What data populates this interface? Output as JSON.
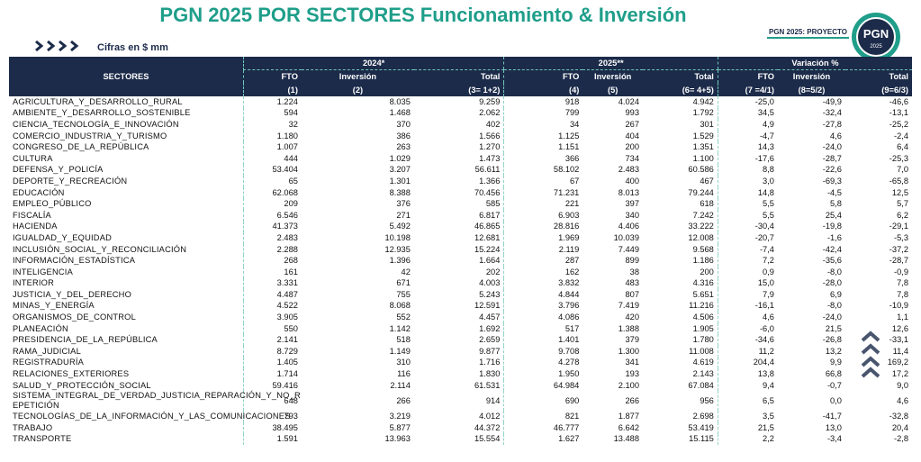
{
  "header": {
    "title": "PGN 2025 POR SECTORES Funcionamiento & Inversión",
    "subtitle": "Cifras en $ mm",
    "badge": "PGN 2025: PROYECTO",
    "logo": "PGN",
    "logo_year": "2025"
  },
  "table": {
    "sector_header": "SECTORES",
    "groups": [
      "2024*",
      "2025**",
      "Variación %"
    ],
    "columns": [
      "FTO",
      "Inversión",
      "Total",
      "FTO",
      "Inversión",
      "Total",
      "FTO",
      "Inversión",
      "Total"
    ],
    "formulas": [
      "(1)",
      "(2)",
      "(3= 1+2)",
      "(4)",
      "(5)",
      "(6= 4+5)",
      "(7 =4/1)",
      "(8=5/2)",
      "(9=6/3)"
    ],
    "rows": [
      [
        "AGRICULTURA_Y_DESARROLLO_RURAL",
        "1.224",
        "8.035",
        "9.259",
        "918",
        "4.024",
        "4.942",
        "-25,0",
        "-49,9",
        "-46,6"
      ],
      [
        "AMBIENTE_Y_DESARROLLO_SOSTENIBLE",
        "594",
        "1.468",
        "2.062",
        "799",
        "993",
        "1.792",
        "34,5",
        "-32,4",
        "-13,1"
      ],
      [
        "CIENCIA_TECNOLOGÍA_E_INNOVACIÓN",
        "32",
        "370",
        "402",
        "34",
        "267",
        "301",
        "4,9",
        "-27,8",
        "-25,2"
      ],
      [
        "COMERCIO_INDUSTRIA_Y_TURISMO",
        "1.180",
        "386",
        "1.566",
        "1.125",
        "404",
        "1.529",
        "-4,7",
        "4,6",
        "-2,4"
      ],
      [
        "CONGRESO_DE_LA_REPÚBLICA",
        "1.007",
        "263",
        "1.270",
        "1.151",
        "200",
        "1.351",
        "14,3",
        "-24,0",
        "6,4"
      ],
      [
        "CULTURA",
        "444",
        "1.029",
        "1.473",
        "366",
        "734",
        "1.100",
        "-17,6",
        "-28,7",
        "-25,3"
      ],
      [
        "DEFENSA_Y_POLICÍA",
        "53.404",
        "3.207",
        "56.611",
        "58.102",
        "2.483",
        "60.586",
        "8,8",
        "-22,6",
        "7,0"
      ],
      [
        "DEPORTE_Y_RECREACIÓN",
        "65",
        "1.301",
        "1.366",
        "67",
        "400",
        "467",
        "3,0",
        "-69,3",
        "-65,8"
      ],
      [
        "EDUCACIÓN",
        "62.068",
        "8.388",
        "70.456",
        "71.231",
        "8.013",
        "79.244",
        "14,8",
        "-4,5",
        "12,5"
      ],
      [
        "EMPLEO_PÚBLICO",
        "209",
        "376",
        "585",
        "221",
        "397",
        "618",
        "5,5",
        "5,8",
        "5,7"
      ],
      [
        "FISCALÍA",
        "6.546",
        "271",
        "6.817",
        "6.903",
        "340",
        "7.242",
        "5,5",
        "25,4",
        "6,2"
      ],
      [
        "HACIENDA",
        "41.373",
        "5.492",
        "46.865",
        "28.816",
        "4.406",
        "33.222",
        "-30,4",
        "-19,8",
        "-29,1"
      ],
      [
        "IGUALDAD_Y_EQUIDAD",
        "2.483",
        "10.198",
        "12.681",
        "1.969",
        "10.039",
        "12.008",
        "-20,7",
        "-1,6",
        "-5,3"
      ],
      [
        "INCLUSIÓN_SOCIAL_Y_RECONCILIACIÓN",
        "2.288",
        "12.935",
        "15.224",
        "2.119",
        "7.449",
        "9.568",
        "-7,4",
        "-42,4",
        "-37,2"
      ],
      [
        "INFORMACIÓN_ESTADÍSTICA",
        "268",
        "1.396",
        "1.664",
        "287",
        "899",
        "1.186",
        "7,2",
        "-35,6",
        "-28,7"
      ],
      [
        "INTELIGENCIA",
        "161",
        "42",
        "202",
        "162",
        "38",
        "200",
        "0,9",
        "-8,0",
        "-0,9"
      ],
      [
        "INTERIOR",
        "3.331",
        "671",
        "4.003",
        "3.832",
        "483",
        "4.316",
        "15,0",
        "-28,0",
        "7,8"
      ],
      [
        "JUSTICIA_Y_DEL_DERECHO",
        "4.487",
        "755",
        "5.243",
        "4.844",
        "807",
        "5.651",
        "7,9",
        "6,9",
        "7,8"
      ],
      [
        "MINAS_Y_ENERGÍA",
        "4.522",
        "8.068",
        "12.591",
        "3.796",
        "7.419",
        "11.216",
        "-16,1",
        "-8,0",
        "-10,9"
      ],
      [
        "ORGANISMOS_DE_CONTROL",
        "3.905",
        "552",
        "4.457",
        "4.086",
        "420",
        "4.506",
        "4,6",
        "-24,0",
        "1,1"
      ],
      [
        "PLANEACIÓN",
        "550",
        "1.142",
        "1.692",
        "517",
        "1.388",
        "1.905",
        "-6,0",
        "21,5",
        "12,6"
      ],
      [
        "PRESIDENCIA_DE_LA_REPÚBLICA",
        "2.141",
        "518",
        "2.659",
        "1.401",
        "379",
        "1.780",
        "-34,6",
        "-26,8",
        "-33,1"
      ],
      [
        "RAMA_JUDICIAL",
        "8.729",
        "1.149",
        "9.877",
        "9.708",
        "1.300",
        "11.008",
        "11,2",
        "13,2",
        "11,4"
      ],
      [
        "REGISTRADURÍA",
        "1.405",
        "310",
        "1.716",
        "4.278",
        "341",
        "4.619",
        "204,4",
        "9,9",
        "169,2"
      ],
      [
        "RELACIONES_EXTERIORES",
        "1.714",
        "116",
        "1.830",
        "1.950",
        "193",
        "2.143",
        "13,8",
        "66,8",
        "17,2"
      ],
      [
        "SALUD_Y_PROTECCIÓN_SOCIAL",
        "59.416",
        "2.114",
        "61.531",
        "64.984",
        "2.100",
        "67.084",
        "9,4",
        "-0,7",
        "9,0"
      ],
      [
        "SISTEMA_INTEGRAL_DE_VERDAD_JUSTICIA_REPARACIÓN_Y_NO_R EPETICIÓN",
        "648",
        "266",
        "914",
        "690",
        "266",
        "956",
        "6,5",
        "0,0",
        "4,6"
      ],
      [
        "TECNOLOGÍAS_DE_LA_INFORMACIÓN_Y_LAS_COMUNICACIONES",
        "793",
        "3.219",
        "4.012",
        "821",
        "1.877",
        "2.698",
        "3,5",
        "-41,7",
        "-32,8"
      ],
      [
        "TRABAJO",
        "38.495",
        "5.877",
        "44.372",
        "46.777",
        "6.642",
        "53.419",
        "21,5",
        "13,0",
        "20,4"
      ],
      [
        "TRANSPORTE",
        "1.591",
        "13.963",
        "15.554",
        "1.627",
        "13.488",
        "15.115",
        "2,2",
        "-3,4",
        "-2,8"
      ]
    ]
  }
}
